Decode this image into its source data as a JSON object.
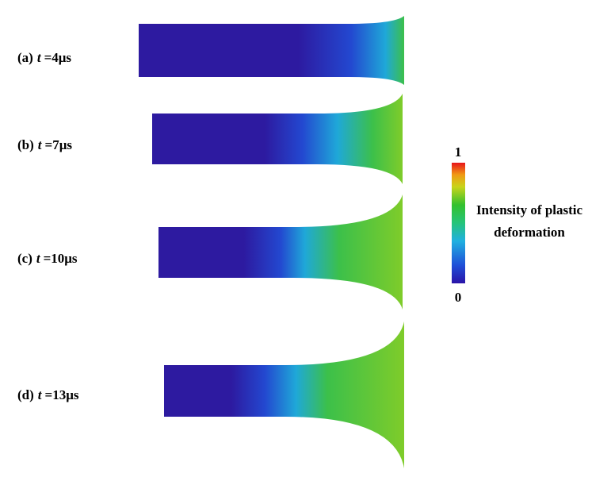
{
  "panels": [
    {
      "label": "(a)",
      "variable": "t",
      "time": "=4μs"
    },
    {
      "label": "(b)",
      "variable": "t",
      "time": "=7μs"
    },
    {
      "label": "(c)",
      "variable": "t",
      "time": "=10μs"
    },
    {
      "label": "(d)",
      "variable": "t",
      "time": "=13μs"
    }
  ],
  "colorbar": {
    "max_label": "1",
    "min_label": "0",
    "title": [
      "Intensity of plastic",
      "deformation"
    ]
  }
}
